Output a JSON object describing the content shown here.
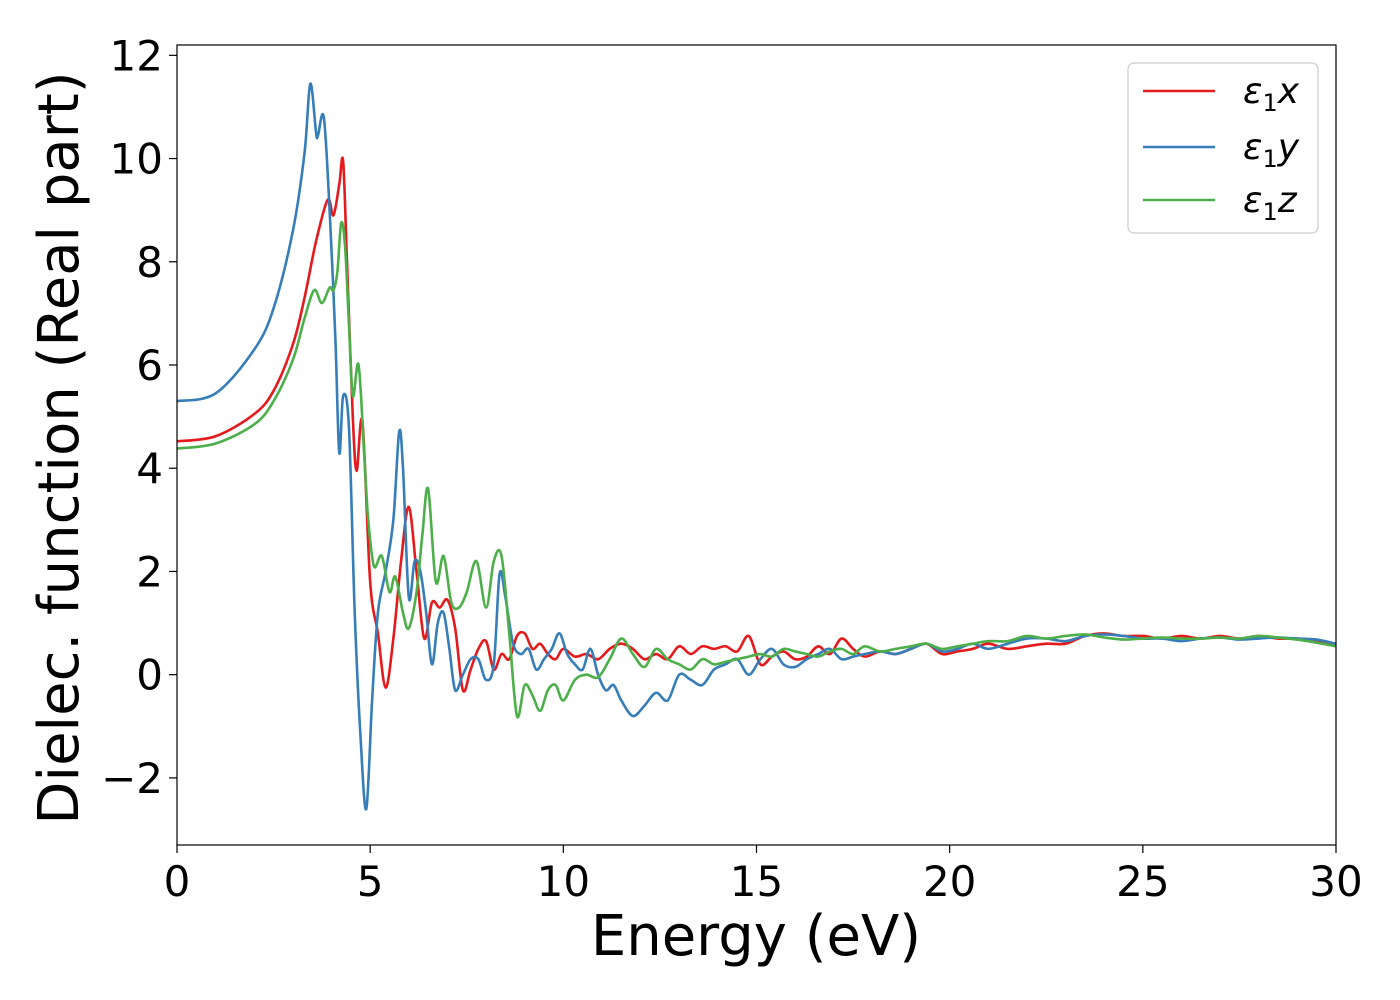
{
  "chart_data": {
    "type": "line",
    "title": "",
    "xlabel": "Energy (eV)",
    "ylabel": "Dielec. function (Real part)",
    "xlim": [
      0,
      30
    ],
    "ylim": [
      -3.3,
      12.2
    ],
    "xticks": [
      0,
      5,
      10,
      15,
      20,
      25,
      30
    ],
    "xtick_labels": [
      "0",
      "5",
      "10",
      "15",
      "20",
      "25",
      "30"
    ],
    "yticks": [
      -2,
      0,
      2,
      4,
      6,
      8,
      10,
      12
    ],
    "ytick_labels": [
      "−2",
      "0",
      "2",
      "4",
      "6",
      "8",
      "10",
      "12"
    ],
    "grid": false,
    "legend": "top-right",
    "series": [
      {
        "name": "ε₁x",
        "label_main": "ε",
        "label_sub": "1",
        "label_var": "x",
        "color": "#e41a1c",
        "x": [
          0,
          1,
          2,
          2.5,
          3,
          3.3,
          3.6,
          3.9,
          4.05,
          4.2,
          4.3,
          4.4,
          4.55,
          4.65,
          4.8,
          5.0,
          5.2,
          5.4,
          5.6,
          5.8,
          6.0,
          6.2,
          6.4,
          6.6,
          6.8,
          7.0,
          7.2,
          7.4,
          7.6,
          7.8,
          8.0,
          8.2,
          8.4,
          8.6,
          8.8,
          9.0,
          9.2,
          9.4,
          9.6,
          9.8,
          10.0,
          10.3,
          10.6,
          10.9,
          11.2,
          11.5,
          11.8,
          12.1,
          12.4,
          12.7,
          13.0,
          13.3,
          13.6,
          13.9,
          14.2,
          14.5,
          14.8,
          15.1,
          15.4,
          15.7,
          16.0,
          16.3,
          16.6,
          16.9,
          17.2,
          17.5,
          17.8,
          18.2,
          18.6,
          19.0,
          19.4,
          19.8,
          20.2,
          20.6,
          21.0,
          21.5,
          22.0,
          22.5,
          23.0,
          23.5,
          24.0,
          24.5,
          25.0,
          25.5,
          26.0,
          26.5,
          27.0,
          27.5,
          28.0,
          28.5,
          29.0,
          29.5,
          30.0
        ],
        "y": [
          4.52,
          4.62,
          5.05,
          5.5,
          6.4,
          7.3,
          8.4,
          9.2,
          8.9,
          9.5,
          9.95,
          8.0,
          5.0,
          3.95,
          4.9,
          1.8,
          0.8,
          -0.25,
          0.7,
          2.2,
          3.25,
          2.0,
          0.7,
          1.4,
          1.3,
          1.45,
          0.9,
          -0.3,
          0.1,
          0.5,
          0.65,
          0.1,
          0.4,
          0.3,
          0.75,
          0.8,
          0.5,
          0.6,
          0.4,
          0.3,
          0.5,
          0.35,
          0.4,
          0.3,
          0.5,
          0.6,
          0.5,
          0.3,
          0.4,
          0.3,
          0.55,
          0.4,
          0.55,
          0.5,
          0.55,
          0.45,
          0.75,
          0.2,
          0.35,
          0.45,
          0.3,
          0.35,
          0.55,
          0.4,
          0.7,
          0.5,
          0.35,
          0.45,
          0.4,
          0.5,
          0.6,
          0.4,
          0.45,
          0.5,
          0.6,
          0.5,
          0.55,
          0.6,
          0.6,
          0.75,
          0.8,
          0.75,
          0.75,
          0.7,
          0.75,
          0.7,
          0.75,
          0.7,
          0.75,
          0.7,
          0.7,
          0.65,
          0.6
        ]
      },
      {
        "name": "ε₁y",
        "label_main": "ε",
        "label_sub": "1",
        "label_var": "y",
        "color": "#377eb8",
        "x": [
          0,
          1,
          2,
          2.5,
          3.0,
          3.3,
          3.45,
          3.6,
          3.65,
          3.8,
          3.95,
          4.1,
          4.2,
          4.3,
          4.45,
          4.6,
          4.75,
          4.9,
          5.05,
          5.2,
          5.4,
          5.6,
          5.75,
          5.85,
          6.0,
          6.15,
          6.3,
          6.45,
          6.6,
          6.75,
          6.9,
          7.05,
          7.2,
          7.4,
          7.6,
          7.8,
          8.0,
          8.2,
          8.35,
          8.5,
          8.7,
          8.9,
          9.1,
          9.3,
          9.5,
          9.7,
          9.9,
          10.1,
          10.3,
          10.5,
          10.7,
          10.9,
          11.1,
          11.3,
          11.5,
          11.8,
          12.1,
          12.4,
          12.7,
          13.0,
          13.3,
          13.6,
          13.9,
          14.2,
          14.5,
          14.8,
          15.1,
          15.4,
          15.7,
          16.0,
          16.3,
          16.6,
          16.9,
          17.2,
          17.5,
          17.8,
          18.2,
          18.6,
          19.0,
          19.4,
          19.8,
          20.2,
          20.6,
          21.0,
          21.5,
          22.0,
          22.5,
          23.0,
          23.5,
          24.0,
          24.5,
          25.0,
          25.5,
          26.0,
          26.5,
          27.0,
          27.5,
          28.0,
          28.5,
          29.0,
          29.5,
          30.0
        ],
        "y": [
          5.3,
          5.45,
          6.3,
          7.1,
          8.6,
          10.1,
          11.45,
          10.5,
          10.45,
          10.8,
          9.0,
          6.5,
          4.3,
          5.4,
          4.8,
          1.2,
          -1.2,
          -2.6,
          -0.5,
          1.2,
          2.0,
          3.0,
          4.7,
          4.0,
          1.5,
          2.2,
          2.0,
          1.2,
          0.2,
          1.0,
          1.2,
          0.5,
          -0.3,
          0.0,
          0.3,
          0.3,
          -0.1,
          0.2,
          1.95,
          1.5,
          0.6,
          0.4,
          0.5,
          0.1,
          0.3,
          0.5,
          0.8,
          0.4,
          0.2,
          0.1,
          0.5,
          0.0,
          -0.3,
          -0.2,
          -0.5,
          -0.8,
          -0.6,
          -0.35,
          -0.5,
          0.0,
          -0.1,
          -0.2,
          0.1,
          0.2,
          0.3,
          0.0,
          0.3,
          0.5,
          0.2,
          0.15,
          0.3,
          0.4,
          0.5,
          0.3,
          0.35,
          0.4,
          0.45,
          0.4,
          0.5,
          0.6,
          0.45,
          0.5,
          0.6,
          0.5,
          0.6,
          0.7,
          0.7,
          0.65,
          0.75,
          0.78,
          0.75,
          0.7,
          0.7,
          0.65,
          0.7,
          0.72,
          0.68,
          0.7,
          0.72,
          0.7,
          0.68,
          0.6
        ]
      },
      {
        "name": "ε₁z",
        "label_main": "ε",
        "label_sub": "1",
        "label_var": "z",
        "color": "#4daf4a",
        "x": [
          0,
          1,
          2,
          2.5,
          3.0,
          3.3,
          3.55,
          3.75,
          3.95,
          4.05,
          4.15,
          4.25,
          4.35,
          4.45,
          4.55,
          4.7,
          4.85,
          4.95,
          5.1,
          5.3,
          5.5,
          5.65,
          5.85,
          6.0,
          6.2,
          6.35,
          6.5,
          6.7,
          6.9,
          7.1,
          7.3,
          7.5,
          7.75,
          8.0,
          8.2,
          8.4,
          8.6,
          8.8,
          9.0,
          9.2,
          9.4,
          9.6,
          9.8,
          10.0,
          10.3,
          10.6,
          10.9,
          11.2,
          11.5,
          11.8,
          12.1,
          12.4,
          12.7,
          13.0,
          13.3,
          13.6,
          13.9,
          14.2,
          14.5,
          14.8,
          15.1,
          15.4,
          15.7,
          16.0,
          16.3,
          16.6,
          16.9,
          17.2,
          17.5,
          17.8,
          18.2,
          18.6,
          19.0,
          19.4,
          19.8,
          20.2,
          20.6,
          21.0,
          21.5,
          22.0,
          22.5,
          23.0,
          23.5,
          24.0,
          24.5,
          25.0,
          25.5,
          26.0,
          26.5,
          27.0,
          27.5,
          28.0,
          28.5,
          29.0,
          29.5,
          30.0
        ],
        "y": [
          4.38,
          4.48,
          4.85,
          5.3,
          6.1,
          6.9,
          7.45,
          7.2,
          7.5,
          7.45,
          7.8,
          8.75,
          8.3,
          6.8,
          5.4,
          6.0,
          4.2,
          3.0,
          2.1,
          2.3,
          1.6,
          1.9,
          1.2,
          0.9,
          1.6,
          2.7,
          3.6,
          1.8,
          2.3,
          1.4,
          1.3,
          1.6,
          2.2,
          1.3,
          2.2,
          2.3,
          0.8,
          -0.8,
          -0.2,
          -0.4,
          -0.7,
          -0.3,
          -0.2,
          -0.5,
          -0.1,
          0.0,
          -0.05,
          0.3,
          0.7,
          0.4,
          0.15,
          0.5,
          0.3,
          0.2,
          0.1,
          0.3,
          0.2,
          0.25,
          0.3,
          0.35,
          0.4,
          0.35,
          0.5,
          0.45,
          0.4,
          0.35,
          0.45,
          0.5,
          0.4,
          0.55,
          0.45,
          0.5,
          0.55,
          0.6,
          0.5,
          0.55,
          0.6,
          0.65,
          0.65,
          0.75,
          0.7,
          0.75,
          0.78,
          0.72,
          0.68,
          0.7,
          0.72,
          0.7,
          0.7,
          0.72,
          0.7,
          0.75,
          0.72,
          0.68,
          0.62,
          0.55
        ]
      }
    ]
  }
}
